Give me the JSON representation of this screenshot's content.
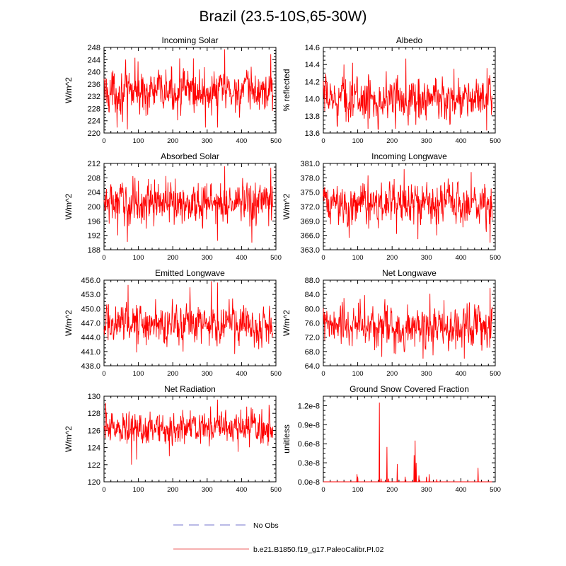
{
  "title": "Brazil (23.5-10S,65-30W)",
  "chart_data": [
    {
      "type": "line",
      "title": "Incoming Solar",
      "ylabel": "W/m^2",
      "xlim": [
        0,
        500
      ],
      "xticks": [
        "0",
        "100",
        "200",
        "300",
        "400",
        "500"
      ],
      "ylim": [
        220,
        248
      ],
      "yticks": [
        "220",
        "224",
        "228",
        "232",
        "236",
        "240",
        "244",
        "248"
      ],
      "series": [
        {
          "color": "#ff0000",
          "length": 492,
          "mean": 233.5,
          "amp": 4.2,
          "min": 220.5,
          "max": 247.5,
          "spikes": [
            [
              351,
              247.4
            ],
            [
              485,
              245.8
            ],
            [
              220,
              244.4
            ],
            [
              90,
              244.6
            ],
            [
              260,
              244.4
            ],
            [
              330,
              221.8
            ],
            [
              68,
              221.2
            ],
            [
              38,
              221.8
            ],
            [
              295,
              221.8
            ]
          ]
        }
      ]
    },
    {
      "type": "line",
      "title": "Albedo",
      "ylabel": "% reflected",
      "xlim": [
        0,
        500
      ],
      "xticks": [
        "0",
        "100",
        "200",
        "300",
        "400",
        "500"
      ],
      "ylim": [
        13.6,
        14.6
      ],
      "yticks": [
        "13.6",
        "13.8",
        "14.0",
        "14.2",
        "14.4",
        "14.6"
      ],
      "series": [
        {
          "color": "#ff0000",
          "length": 492,
          "mean": 14.0,
          "amp": 0.15,
          "min": 13.62,
          "max": 14.5,
          "spikes": [
            [
              240,
              14.47
            ],
            [
              85,
              14.42
            ],
            [
              60,
              14.4
            ],
            [
              380,
              14.35
            ],
            [
              210,
              13.65
            ],
            [
              130,
              13.65
            ],
            [
              475,
              13.63
            ]
          ]
        }
      ]
    },
    {
      "type": "line",
      "title": "Absorbed Solar",
      "ylabel": "W/m^2",
      "xlim": [
        0,
        500
      ],
      "xticks": [
        "0",
        "100",
        "200",
        "300",
        "400",
        "500"
      ],
      "ylim": [
        188,
        212
      ],
      "yticks": [
        "188",
        "192",
        "196",
        "200",
        "204",
        "208",
        "212"
      ],
      "series": [
        {
          "color": "#ff0000",
          "length": 492,
          "mean": 201.0,
          "amp": 3.5,
          "min": 189.5,
          "max": 211.5,
          "spikes": [
            [
              351,
              211.2
            ],
            [
              485,
              210.8
            ],
            [
              180,
              208.5
            ],
            [
              90,
              208.0
            ],
            [
              68,
              190.2
            ],
            [
              430,
              190.0
            ],
            [
              330,
              190.5
            ],
            [
              40,
              192.0
            ]
          ]
        }
      ]
    },
    {
      "type": "line",
      "title": "Incoming Longwave",
      "ylabel": "W/m^2",
      "xlim": [
        0,
        500
      ],
      "xticks": [
        "0",
        "100",
        "200",
        "300",
        "400",
        "500"
      ],
      "ylim": [
        363.0,
        381.0
      ],
      "yticks": [
        "363.0",
        "366.0",
        "369.0",
        "372.0",
        "375.0",
        "378.0",
        "381.0"
      ],
      "series": [
        {
          "color": "#ff0000",
          "length": 492,
          "mean": 372.5,
          "amp": 2.6,
          "min": 364.0,
          "max": 380.5,
          "spikes": [
            [
              235,
              379.8
            ],
            [
              430,
              379.2
            ],
            [
              130,
              378.5
            ],
            [
              485,
              364.5
            ],
            [
              275,
              365.2
            ],
            [
              75,
              365.5
            ],
            [
              330,
              366.0
            ]
          ]
        }
      ]
    },
    {
      "type": "line",
      "title": "Emitted Longwave",
      "ylabel": "W/m^2",
      "xlim": [
        0,
        500
      ],
      "xticks": [
        "0",
        "100",
        "200",
        "300",
        "400",
        "500"
      ],
      "ylim": [
        438.0,
        456.0
      ],
      "yticks": [
        "438.0",
        "441.0",
        "444.0",
        "447.0",
        "450.0",
        "453.0",
        "456.0"
      ],
      "series": [
        {
          "color": "#ff0000",
          "length": 492,
          "mean": 447.0,
          "amp": 2.4,
          "min": 440.0,
          "max": 456.0,
          "spikes": [
            [
              312,
              455.8
            ],
            [
              330,
              455.5
            ],
            [
              70,
              455.0
            ],
            [
              250,
              454.5
            ],
            [
              380,
              440.5
            ],
            [
              95,
              440.8
            ],
            [
              230,
              441.0
            ],
            [
              450,
              441.5
            ]
          ]
        }
      ]
    },
    {
      "type": "line",
      "title": "Net Longwave",
      "ylabel": "W/m^2",
      "xlim": [
        0,
        500
      ],
      "xticks": [
        "0",
        "100",
        "200",
        "300",
        "400",
        "500"
      ],
      "ylim": [
        64.0,
        88.0
      ],
      "yticks": [
        "64.0",
        "68.0",
        "72.0",
        "76.0",
        "80.0",
        "84.0",
        "88.0"
      ],
      "series": [
        {
          "color": "#ff0000",
          "length": 492,
          "mean": 75.0,
          "amp": 3.6,
          "min": 65.5,
          "max": 86.0,
          "spikes": [
            [
              485,
              85.8
            ],
            [
              310,
              84.2
            ],
            [
              120,
              83.8
            ],
            [
              60,
              83.0
            ],
            [
              290,
              66.0
            ],
            [
              170,
              66.5
            ],
            [
              410,
              66.0
            ]
          ]
        }
      ]
    },
    {
      "type": "line",
      "title": "Net Radiation",
      "ylabel": "W/m^2",
      "xlim": [
        0,
        500
      ],
      "xticks": [
        "0",
        "100",
        "200",
        "300",
        "400",
        "500"
      ],
      "ylim": [
        120,
        130
      ],
      "yticks": [
        "120",
        "122",
        "124",
        "126",
        "128",
        "130"
      ],
      "series": [
        {
          "color": "#ff0000",
          "length": 492,
          "mean": 126.3,
          "amp": 1.1,
          "min": 121.9,
          "max": 129.7,
          "spikes": [
            [
              330,
              129.6
            ],
            [
              5,
              129.2
            ],
            [
              480,
              129.0
            ],
            [
              310,
              128.8
            ],
            [
              80,
              122.0
            ],
            [
              95,
              122.6
            ],
            [
              190,
              123.0
            ],
            [
              390,
              123.5
            ]
          ]
        }
      ]
    },
    {
      "type": "line",
      "title": "Ground Snow Covered Fraction",
      "ylabel": "unitless",
      "xlim": [
        0,
        500
      ],
      "xticks": [
        "0",
        "100",
        "200",
        "300",
        "400",
        "500"
      ],
      "ylim": [
        0.0,
        1.35e-08
      ],
      "yvalues": [
        0.0,
        3e-09,
        6e-09,
        9e-09,
        1.2e-08
      ],
      "yticks": [
        "0.0e-8",
        "0.3e-8",
        "0.6e-8",
        "0.9e-8",
        "1.2e-8"
      ],
      "series": [
        {
          "color": "#ff0000",
          "length": 492,
          "baseline": 0.0,
          "spikes": [
            [
              98,
              1.2e-09
            ],
            [
              100,
              8e-10
            ],
            [
              163,
              1.25e-08
            ],
            [
              168,
              5e-10
            ],
            [
              185,
              5.5e-09
            ],
            [
              190,
              5e-10
            ],
            [
              215,
              2.8e-09
            ],
            [
              238,
              8e-10
            ],
            [
              264,
              4.2e-09
            ],
            [
              267,
              6.5e-09
            ],
            [
              270,
              3e-09
            ],
            [
              278,
              1e-09
            ],
            [
              300,
              8e-10
            ],
            [
              308,
              1.2e-09
            ],
            [
              330,
              4e-10
            ],
            [
              450,
              2.2e-09
            ]
          ]
        }
      ]
    }
  ],
  "legend": {
    "placement": "bottom",
    "items": [
      {
        "label": "No Obs",
        "color": "#8f8fd8",
        "style": "dashed"
      },
      {
        "label": "b.e21.B1850.f19_g17.PaleoCalibr.PI.02",
        "color": "#f08080",
        "style": "solid"
      }
    ]
  }
}
